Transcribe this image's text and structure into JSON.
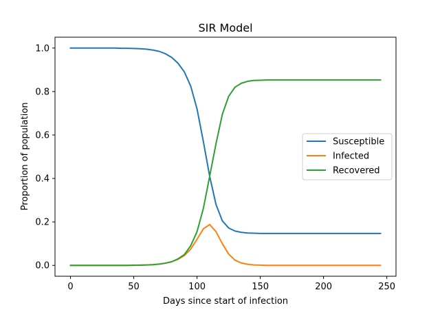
{
  "chart_data": {
    "type": "line",
    "title": "SIR Model",
    "xlabel": "Days since start of infection",
    "ylabel": "Proportion of population",
    "xlim": [
      -12.25,
      257.25
    ],
    "ylim": [
      -0.05,
      1.05
    ],
    "xticks": [
      0,
      50,
      100,
      150,
      200,
      250
    ],
    "yticks": [
      0.0,
      0.2,
      0.4,
      0.6,
      0.8,
      1.0
    ],
    "xtick_labels": [
      "0",
      "50",
      "100",
      "150",
      "200",
      "250"
    ],
    "ytick_labels": [
      "0.0",
      "0.2",
      "0.4",
      "0.6",
      "0.8",
      "1.0"
    ],
    "grid": false,
    "legend_position": "center-right",
    "x": [
      0,
      5,
      10,
      15,
      20,
      25,
      30,
      35,
      40,
      45,
      50,
      55,
      60,
      65,
      70,
      75,
      80,
      85,
      90,
      95,
      100,
      105,
      110,
      115,
      120,
      125,
      130,
      135,
      140,
      145,
      150,
      155,
      160,
      165,
      170,
      175,
      180,
      185,
      190,
      195,
      200,
      205,
      210,
      215,
      220,
      225,
      230,
      235,
      240,
      245
    ],
    "series": [
      {
        "name": "Susceptible",
        "color": "#1f77b4",
        "values": [
          1.0,
          1.0,
          1.0,
          1.0,
          1.0,
          1.0,
          1.0,
          1.0,
          0.999,
          0.999,
          0.998,
          0.997,
          0.995,
          0.991,
          0.985,
          0.974,
          0.957,
          0.93,
          0.89,
          0.825,
          0.72,
          0.57,
          0.41,
          0.28,
          0.205,
          0.172,
          0.158,
          0.152,
          0.149,
          0.148,
          0.147,
          0.147,
          0.147,
          0.147,
          0.147,
          0.147,
          0.147,
          0.147,
          0.147,
          0.147,
          0.147,
          0.147,
          0.147,
          0.147,
          0.147,
          0.147,
          0.147,
          0.147,
          0.147,
          0.147
        ]
      },
      {
        "name": "Infected",
        "color": "#ff7f0e",
        "values": [
          0.0,
          0.0,
          0.0,
          0.0,
          0.0,
          0.0,
          0.0,
          0.0,
          0.0,
          0.0,
          0.0,
          0.001,
          0.002,
          0.003,
          0.006,
          0.01,
          0.017,
          0.028,
          0.045,
          0.075,
          0.12,
          0.168,
          0.188,
          0.155,
          0.1,
          0.052,
          0.024,
          0.011,
          0.005,
          0.002,
          0.001,
          0.0,
          0.0,
          0.0,
          0.0,
          0.0,
          0.0,
          0.0,
          0.0,
          0.0,
          0.0,
          0.0,
          0.0,
          0.0,
          0.0,
          0.0,
          0.0,
          0.0,
          0.0,
          0.0
        ]
      },
      {
        "name": "Recovered",
        "color": "#2ca02c",
        "values": [
          0.0,
          0.0,
          0.0,
          0.0,
          0.0,
          0.0,
          0.0,
          0.0,
          0.0,
          0.0,
          0.001,
          0.001,
          0.002,
          0.003,
          0.006,
          0.01,
          0.017,
          0.03,
          0.05,
          0.09,
          0.155,
          0.262,
          0.41,
          0.56,
          0.695,
          0.778,
          0.82,
          0.838,
          0.847,
          0.851,
          0.852,
          0.853,
          0.853,
          0.853,
          0.853,
          0.853,
          0.853,
          0.853,
          0.853,
          0.853,
          0.853,
          0.853,
          0.853,
          0.853,
          0.853,
          0.853,
          0.853,
          0.853,
          0.853,
          0.853
        ]
      }
    ]
  }
}
